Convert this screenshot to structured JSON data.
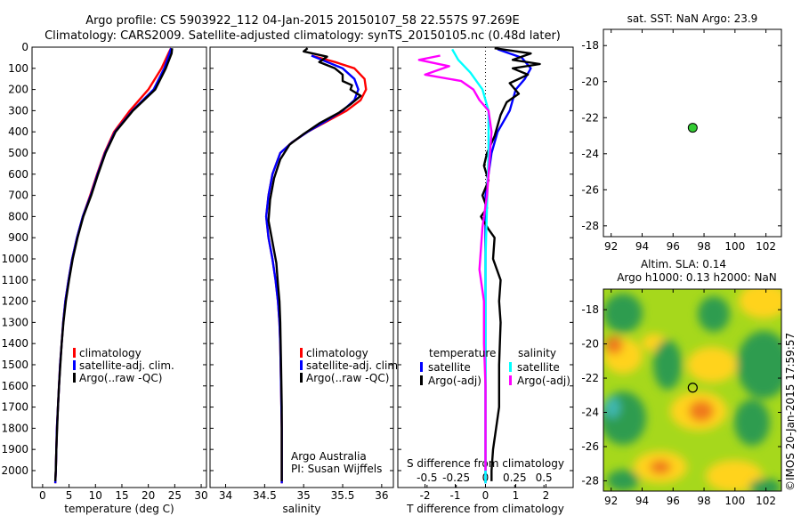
{
  "header": {
    "line1": "Argo profile: CS 5903922_112 04-Jan-2015 20150107_58 22.557S 97.269E",
    "line2": "Climatology: CARS2009. Satellite-adjusted climatology: synTS_20150105.nc (0.48d later)"
  },
  "chart_data": [
    {
      "id": "temperature",
      "type": "line",
      "xlabel": "temperature (deg C)",
      "xlim": [
        -2,
        31
      ],
      "xticks": [
        0,
        5,
        10,
        15,
        20,
        25,
        30
      ],
      "ylim": [
        2080,
        0
      ],
      "yticks": [
        0,
        100,
        200,
        300,
        400,
        500,
        600,
        700,
        800,
        900,
        1000,
        1100,
        1200,
        1300,
        1400,
        1500,
        1600,
        1700,
        1800,
        1900,
        2000
      ],
      "legend": [
        "climatology",
        "satellite-adj. clim.",
        "Argo(..raw -QC)"
      ],
      "series": [
        {
          "name": "climatology",
          "color": "#ff0000",
          "points": [
            [
              24.3,
              5
            ],
            [
              23.8,
              30
            ],
            [
              22.5,
              100
            ],
            [
              20,
              200
            ],
            [
              16.5,
              300
            ],
            [
              13.5,
              400
            ],
            [
              11.7,
              500
            ],
            [
              10.3,
              600
            ],
            [
              9,
              700
            ],
            [
              7.6,
              800
            ],
            [
              6.5,
              900
            ],
            [
              5.6,
              1000
            ],
            [
              4.9,
              1100
            ],
            [
              4.3,
              1200
            ],
            [
              3.9,
              1300
            ],
            [
              3.6,
              1400
            ],
            [
              3.3,
              1500
            ],
            [
              3.1,
              1600
            ],
            [
              2.9,
              1700
            ],
            [
              2.7,
              1800
            ],
            [
              2.6,
              1900
            ],
            [
              2.5,
              2000
            ],
            [
              2.4,
              2060
            ]
          ]
        },
        {
          "name": "satellite-adj. clim.",
          "color": "#0000ff",
          "points": [
            [
              24.3,
              5
            ],
            [
              24,
              30
            ],
            [
              23,
              100
            ],
            [
              21,
              200
            ],
            [
              17,
              300
            ],
            [
              13.7,
              400
            ],
            [
              11.8,
              500
            ],
            [
              10.4,
              600
            ],
            [
              9.1,
              700
            ],
            [
              7.6,
              800
            ],
            [
              6.5,
              900
            ],
            [
              5.6,
              1000
            ],
            [
              4.9,
              1100
            ],
            [
              4.3,
              1200
            ],
            [
              3.9,
              1300
            ],
            [
              3.6,
              1400
            ],
            [
              3.3,
              1500
            ],
            [
              3.1,
              1600
            ],
            [
              2.9,
              1700
            ],
            [
              2.7,
              1800
            ],
            [
              2.6,
              1900
            ],
            [
              2.5,
              2000
            ],
            [
              2.4,
              2060
            ]
          ]
        },
        {
          "name": "Argo(..raw -QC)",
          "color": "#000000",
          "points": [
            [
              24.5,
              5
            ],
            [
              24.4,
              30
            ],
            [
              23.3,
              100
            ],
            [
              21.3,
              200
            ],
            [
              17.1,
              300
            ],
            [
              13.8,
              400
            ],
            [
              11.9,
              500
            ],
            [
              10.5,
              600
            ],
            [
              9.2,
              700
            ],
            [
              7.7,
              800
            ],
            [
              6.6,
              900
            ],
            [
              5.7,
              1000
            ],
            [
              5,
              1100
            ],
            [
              4.4,
              1200
            ],
            [
              3.95,
              1300
            ],
            [
              3.6,
              1400
            ],
            [
              3.35,
              1500
            ],
            [
              3.1,
              1600
            ],
            [
              2.9,
              1700
            ],
            [
              2.75,
              1800
            ],
            [
              2.6,
              1900
            ],
            [
              2.5,
              2000
            ],
            [
              2.4,
              2050
            ]
          ]
        }
      ]
    },
    {
      "id": "salinity",
      "type": "line",
      "xlabel": "salinity",
      "xlim": [
        33.8,
        36.15
      ],
      "xticks": [
        34,
        34.5,
        35,
        35.5,
        36
      ],
      "xticklabels": [
        "34",
        "34.5",
        "35",
        "35.5",
        "36"
      ],
      "ylim": [
        2080,
        0
      ],
      "legend": [
        "climatology",
        "satellite-adj. clim.",
        "Argo(..raw -QC)"
      ],
      "annotations": [
        "Argo Australia",
        "PI: Susan Wijffels"
      ],
      "series": [
        {
          "name": "climatology",
          "color": "#ff0000",
          "points": [
            [
              35.1,
              40
            ],
            [
              35.4,
              70
            ],
            [
              35.65,
              100
            ],
            [
              35.78,
              150
            ],
            [
              35.8,
              200
            ],
            [
              35.73,
              250
            ],
            [
              35.55,
              300
            ],
            [
              35.3,
              350
            ],
            [
              35.05,
              400
            ],
            [
              34.85,
              450
            ],
            [
              34.7,
              500
            ],
            [
              34.6,
              600
            ],
            [
              34.55,
              700
            ],
            [
              34.52,
              800
            ],
            [
              34.55,
              900
            ],
            [
              34.6,
              1000
            ],
            [
              34.64,
              1100
            ],
            [
              34.67,
              1200
            ],
            [
              34.69,
              1300
            ],
            [
              34.7,
              1400
            ],
            [
              34.71,
              1600
            ],
            [
              34.72,
              1800
            ],
            [
              34.72,
              2060
            ]
          ]
        },
        {
          "name": "satellite-adj. clim.",
          "color": "#0000ff",
          "points": [
            [
              35.1,
              40
            ],
            [
              35.3,
              70
            ],
            [
              35.5,
              100
            ],
            [
              35.65,
              150
            ],
            [
              35.7,
              200
            ],
            [
              35.65,
              250
            ],
            [
              35.5,
              300
            ],
            [
              35.28,
              350
            ],
            [
              35.05,
              400
            ],
            [
              34.85,
              450
            ],
            [
              34.7,
              500
            ],
            [
              34.6,
              600
            ],
            [
              34.55,
              700
            ],
            [
              34.52,
              800
            ],
            [
              34.55,
              900
            ],
            [
              34.6,
              1000
            ],
            [
              34.64,
              1100
            ],
            [
              34.67,
              1200
            ],
            [
              34.69,
              1300
            ],
            [
              34.7,
              1400
            ],
            [
              34.71,
              1600
            ],
            [
              34.72,
              1800
            ],
            [
              34.72,
              2060
            ]
          ]
        },
        {
          "name": "Argo(..raw -QC)",
          "color": "#000000",
          "points": [
            [
              35.05,
              5
            ],
            [
              35.0,
              20
            ],
            [
              35.3,
              45
            ],
            [
              35.2,
              70
            ],
            [
              35.4,
              100
            ],
            [
              35.5,
              130
            ],
            [
              35.5,
              160
            ],
            [
              35.62,
              180
            ],
            [
              35.6,
              200
            ],
            [
              35.73,
              230
            ],
            [
              35.6,
              270
            ],
            [
              35.45,
              310
            ],
            [
              35.2,
              360
            ],
            [
              35.0,
              410
            ],
            [
              34.82,
              460
            ],
            [
              34.7,
              530
            ],
            [
              34.62,
              620
            ],
            [
              34.57,
              720
            ],
            [
              34.55,
              820
            ],
            [
              34.6,
              920
            ],
            [
              34.65,
              1020
            ],
            [
              34.67,
              1120
            ],
            [
              34.69,
              1200
            ],
            [
              34.7,
              1300
            ],
            [
              34.71,
              1500
            ],
            [
              34.72,
              1700
            ],
            [
              34.72,
              1900
            ],
            [
              34.72,
              2050
            ]
          ]
        }
      ]
    },
    {
      "id": "difference",
      "type": "line",
      "xlabel": "T difference from climatology",
      "xlabel_top": "S difference from climatology",
      "xlim": [
        -2.9,
        2.9
      ],
      "xticks": [
        -2,
        -1,
        0,
        1,
        2
      ],
      "xticks_top": [
        -0.5,
        -0.25,
        0,
        0.25,
        0.5
      ],
      "ylim": [
        2080,
        0
      ],
      "legend_titles": [
        "temperature",
        "salinity"
      ],
      "legend": [
        "satellite",
        "Argo(-adj)",
        "satellite",
        "Argo(-adj)"
      ],
      "series": [
        {
          "name": "temperature satellite",
          "color": "#0000ff",
          "points": [
            [
              0.4,
              10
            ],
            [
              1.2,
              50
            ],
            [
              1.5,
              100
            ],
            [
              1.3,
              150
            ],
            [
              1.0,
              200
            ],
            [
              0.8,
              300
            ],
            [
              0.4,
              400
            ],
            [
              0.2,
              500
            ],
            [
              0.1,
              600
            ],
            [
              0.0,
              700
            ],
            [
              0.0,
              800
            ],
            [
              0.0,
              1000
            ],
            [
              0.0,
              1500
            ],
            [
              0.0,
              2000
            ],
            [
              0.0,
              2060
            ]
          ]
        },
        {
          "name": "temperature Argo(-adj)",
          "color": "#000000",
          "points": [
            [
              0.3,
              5
            ],
            [
              1.5,
              30
            ],
            [
              0.9,
              60
            ],
            [
              1.8,
              80
            ],
            [
              0.9,
              100
            ],
            [
              1.4,
              130
            ],
            [
              0.8,
              170
            ],
            [
              1.1,
              220
            ],
            [
              0.7,
              260
            ],
            [
              0.5,
              320
            ],
            [
              0.3,
              420
            ],
            [
              0.05,
              500
            ],
            [
              -0.05,
              560
            ],
            [
              0.1,
              630
            ],
            [
              -0.1,
              700
            ],
            [
              0.05,
              760
            ],
            [
              -0.15,
              800
            ],
            [
              0.1,
              860
            ],
            [
              0.3,
              900
            ],
            [
              0.25,
              1000
            ],
            [
              0.5,
              1100
            ],
            [
              0.45,
              1200
            ],
            [
              0.5,
              1300
            ],
            [
              0.45,
              1500
            ],
            [
              0.45,
              1700
            ],
            [
              0.35,
              1800
            ],
            [
              0.25,
              1900
            ],
            [
              0.2,
              2000
            ],
            [
              0.2,
              2050
            ]
          ]
        },
        {
          "name": "salinity satellite",
          "color": "#00ffff",
          "points": [
            [
              -1.1,
              10
            ],
            [
              -0.9,
              60
            ],
            [
              -0.5,
              120
            ],
            [
              -0.1,
              200
            ],
            [
              0.1,
              300
            ],
            [
              0.1,
              500
            ],
            [
              0.0,
              1000
            ],
            [
              0.0,
              1500
            ],
            [
              0.0,
              2060
            ]
          ]
        },
        {
          "name": "salinity Argo(-adj)",
          "color": "#ff00ff",
          "points": [
            [
              -1.5,
              40
            ],
            [
              -2.2,
              60
            ],
            [
              -1.2,
              90
            ],
            [
              -2.0,
              130
            ],
            [
              -0.8,
              160
            ],
            [
              -0.4,
              200
            ],
            [
              -0.2,
              250
            ],
            [
              0.1,
              300
            ],
            [
              0.2,
              400
            ],
            [
              0.15,
              500
            ],
            [
              0.05,
              700
            ],
            [
              -0.1,
              850
            ],
            [
              -0.15,
              950
            ],
            [
              -0.2,
              1050
            ],
            [
              -0.05,
              1200
            ],
            [
              -0.05,
              1400
            ],
            [
              0.0,
              1600
            ],
            [
              0.0,
              1800
            ],
            [
              0.0,
              2000
            ]
          ]
        }
      ]
    },
    {
      "id": "sst-position",
      "type": "scatter",
      "title": "sat. SST: NaN Argo: 23.9",
      "xlim": [
        91.5,
        103
      ],
      "ylim": [
        -28.6,
        -17.1
      ],
      "xticks": [
        92,
        94,
        96,
        98,
        100,
        102
      ],
      "yticks": [
        -18,
        -20,
        -22,
        -24,
        -26,
        -28
      ],
      "point": [
        97.269,
        -22.557
      ],
      "point_color": "#33cc33"
    },
    {
      "id": "sla-map",
      "type": "heatmap",
      "title_line1": "Altim. SLA: 0.14",
      "title_line2": "Argo h1000: 0.13 h2000: NaN",
      "xlim": [
        91.5,
        103
      ],
      "ylim": [
        -28.6,
        -16.8
      ],
      "xticks": [
        92,
        94,
        96,
        98,
        100,
        102
      ],
      "yticks": [
        -18,
        -20,
        -22,
        -24,
        -26,
        -28
      ],
      "point": [
        97.269,
        -22.557
      ],
      "colors": {
        "background": "#a6d81c",
        "high": "#f07a1a",
        "mid_high": "#ffd31a",
        "low": "#2e9c4f",
        "lowest": "#3fb7b0"
      }
    }
  ],
  "credit": "©IMOS 20-Jan-2015 17:59:57"
}
